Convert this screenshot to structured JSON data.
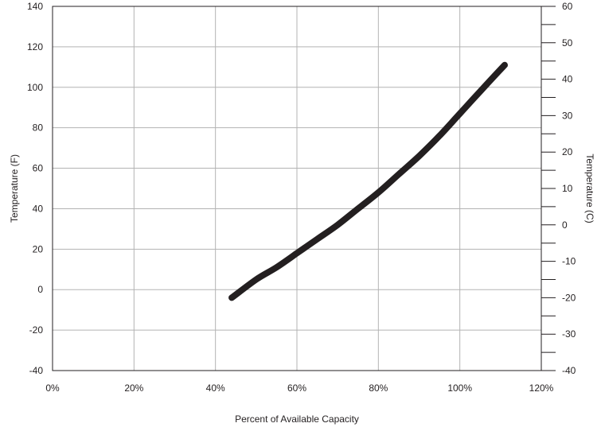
{
  "chart_data": {
    "type": "line",
    "title": "",
    "xlabel": "Percent of Available Capacity",
    "ylabel": "Temperature (F)",
    "y2label": "Temperature (C)",
    "xlim": [
      0,
      120
    ],
    "ylim": [
      -40,
      140
    ],
    "y2lim": [
      -40,
      60
    ],
    "x_ticks": [
      0,
      20,
      40,
      60,
      80,
      100,
      120
    ],
    "x_tick_labels": [
      "0%",
      "20%",
      "40%",
      "60%",
      "80%",
      "100%",
      "120%"
    ],
    "y_ticks": [
      -40,
      -20,
      0,
      20,
      40,
      60,
      80,
      100,
      120,
      140
    ],
    "y_tick_labels": [
      "-40",
      "-20",
      "0",
      "20",
      "40",
      "60",
      "80",
      "100",
      "120",
      "140"
    ],
    "y2_ticks": [
      -40,
      -30,
      -20,
      -10,
      0,
      10,
      20,
      30,
      40,
      50,
      60
    ],
    "y2_tick_labels": [
      "-40",
      "-30",
      "-20",
      "-10",
      "0",
      "10",
      "20",
      "30",
      "40",
      "50",
      "60"
    ],
    "grid": true,
    "series": [
      {
        "color": "#231f20",
        "x": [
          44,
          50,
          55,
          60,
          65,
          70,
          75,
          80,
          85,
          90,
          95,
          100,
          105,
          111
        ],
        "y": [
          -4,
          5,
          11,
          18,
          25,
          32,
          40,
          48,
          57,
          66,
          76,
          87,
          98,
          111
        ]
      }
    ],
    "colors": {
      "axis": "#231f20",
      "grid": "#b3b3b3"
    }
  }
}
